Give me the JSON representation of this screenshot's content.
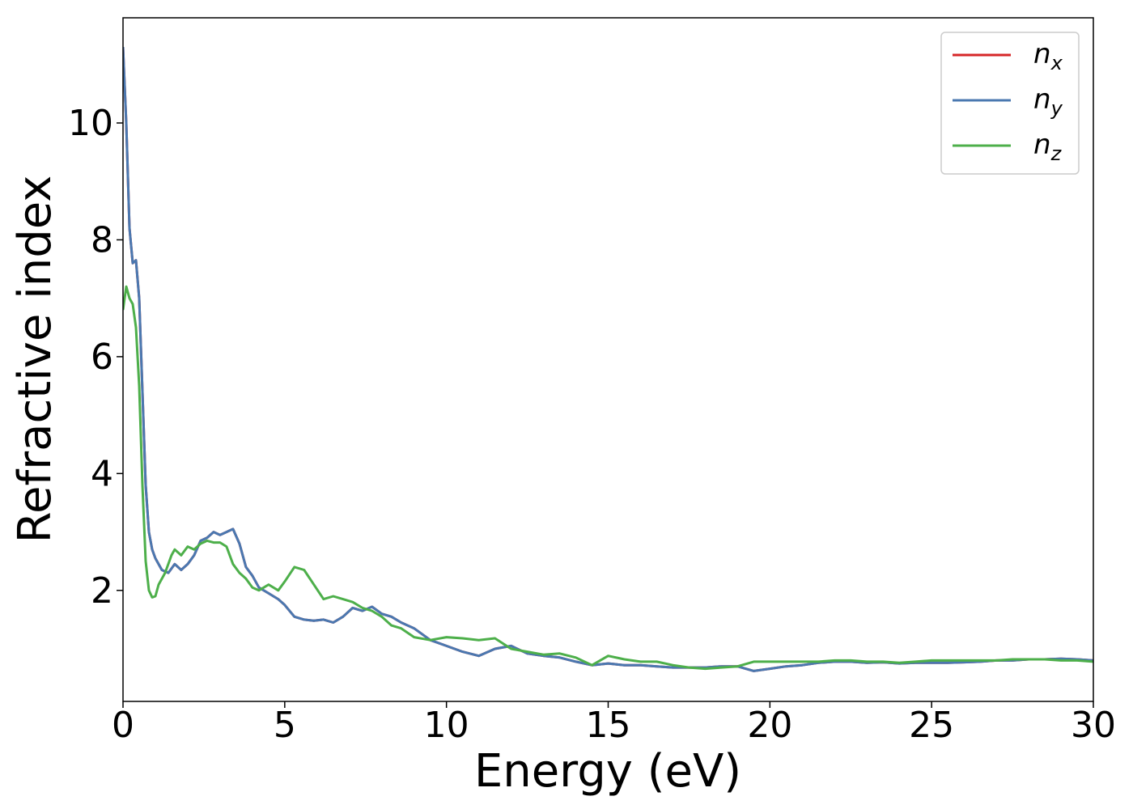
{
  "chart_data": {
    "type": "line",
    "title": "",
    "xlabel": "Energy (eV)",
    "ylabel": "Refractive index",
    "xlim": [
      0,
      30
    ],
    "ylim": [
      0.1,
      11.8
    ],
    "xticks": [
      0,
      5,
      10,
      15,
      20,
      25,
      30
    ],
    "yticks": [
      2,
      4,
      6,
      8,
      10
    ],
    "grid": false,
    "legend_position": "top-right",
    "series": [
      {
        "name": "n_x",
        "legend_main": "n",
        "legend_sub": "x",
        "color": "#d62728",
        "x": [
          0,
          0.1,
          0.2,
          0.3,
          0.4,
          0.5,
          0.6,
          0.7,
          0.8,
          0.9,
          1.0,
          1.2,
          1.4,
          1.6,
          1.8,
          2.0,
          2.2,
          2.4,
          2.6,
          2.8,
          3.0,
          3.2,
          3.4,
          3.6,
          3.8,
          4.0,
          4.2,
          4.5,
          4.8,
          5.0,
          5.3,
          5.6,
          5.9,
          6.2,
          6.5,
          6.8,
          7.1,
          7.4,
          7.7,
          8.0,
          8.3,
          8.6,
          9.0,
          9.5,
          10.0,
          10.5,
          11.0,
          11.5,
          12.0,
          12.5,
          13.0,
          13.5,
          14.0,
          14.5,
          15.0,
          15.5,
          16.0,
          16.5,
          17.0,
          17.5,
          18.0,
          18.5,
          19.0,
          19.5,
          20.0,
          20.5,
          21.0,
          21.5,
          22.0,
          22.5,
          23.0,
          23.5,
          24.0,
          24.5,
          25.0,
          25.5,
          26.0,
          26.5,
          27.0,
          27.5,
          28.0,
          28.5,
          29.0,
          29.5,
          30.0
        ],
        "y": [
          11.3,
          10.0,
          8.2,
          7.6,
          7.65,
          7.0,
          5.4,
          3.8,
          3.0,
          2.7,
          2.55,
          2.35,
          2.3,
          2.45,
          2.35,
          2.45,
          2.6,
          2.85,
          2.9,
          3.0,
          2.95,
          3.0,
          3.05,
          2.8,
          2.4,
          2.25,
          2.05,
          1.95,
          1.85,
          1.75,
          1.55,
          1.5,
          1.48,
          1.5,
          1.45,
          1.55,
          1.7,
          1.65,
          1.72,
          1.6,
          1.55,
          1.45,
          1.35,
          1.15,
          1.05,
          0.95,
          0.88,
          1.0,
          1.05,
          0.92,
          0.88,
          0.85,
          0.78,
          0.72,
          0.75,
          0.72,
          0.72,
          0.7,
          0.68,
          0.68,
          0.68,
          0.7,
          0.7,
          0.62,
          0.66,
          0.7,
          0.72,
          0.76,
          0.78,
          0.78,
          0.76,
          0.77,
          0.75,
          0.76,
          0.76,
          0.76,
          0.77,
          0.78,
          0.8,
          0.8,
          0.82,
          0.82,
          0.83,
          0.82,
          0.8
        ]
      },
      {
        "name": "n_y",
        "legend_main": "n",
        "legend_sub": "y",
        "color": "#4a78b0",
        "x": [
          0,
          0.1,
          0.2,
          0.3,
          0.4,
          0.5,
          0.6,
          0.7,
          0.8,
          0.9,
          1.0,
          1.2,
          1.4,
          1.6,
          1.8,
          2.0,
          2.2,
          2.4,
          2.6,
          2.8,
          3.0,
          3.2,
          3.4,
          3.6,
          3.8,
          4.0,
          4.2,
          4.5,
          4.8,
          5.0,
          5.3,
          5.6,
          5.9,
          6.2,
          6.5,
          6.8,
          7.1,
          7.4,
          7.7,
          8.0,
          8.3,
          8.6,
          9.0,
          9.5,
          10.0,
          10.5,
          11.0,
          11.5,
          12.0,
          12.5,
          13.0,
          13.5,
          14.0,
          14.5,
          15.0,
          15.5,
          16.0,
          16.5,
          17.0,
          17.5,
          18.0,
          18.5,
          19.0,
          19.5,
          20.0,
          20.5,
          21.0,
          21.5,
          22.0,
          22.5,
          23.0,
          23.5,
          24.0,
          24.5,
          25.0,
          25.5,
          26.0,
          26.5,
          27.0,
          27.5,
          28.0,
          28.5,
          29.0,
          29.5,
          30.0
        ],
        "y": [
          11.3,
          10.0,
          8.2,
          7.6,
          7.65,
          7.0,
          5.4,
          3.8,
          3.0,
          2.7,
          2.55,
          2.35,
          2.3,
          2.45,
          2.35,
          2.45,
          2.6,
          2.85,
          2.9,
          3.0,
          2.95,
          3.0,
          3.05,
          2.8,
          2.4,
          2.25,
          2.05,
          1.95,
          1.85,
          1.75,
          1.55,
          1.5,
          1.48,
          1.5,
          1.45,
          1.55,
          1.7,
          1.65,
          1.72,
          1.6,
          1.55,
          1.45,
          1.35,
          1.15,
          1.05,
          0.95,
          0.88,
          1.0,
          1.05,
          0.92,
          0.88,
          0.85,
          0.78,
          0.72,
          0.75,
          0.72,
          0.72,
          0.7,
          0.68,
          0.68,
          0.68,
          0.7,
          0.7,
          0.62,
          0.66,
          0.7,
          0.72,
          0.76,
          0.78,
          0.78,
          0.76,
          0.77,
          0.75,
          0.76,
          0.76,
          0.76,
          0.77,
          0.78,
          0.8,
          0.8,
          0.82,
          0.82,
          0.83,
          0.82,
          0.8
        ]
      },
      {
        "name": "n_z",
        "legend_main": "n",
        "legend_sub": "z",
        "color": "#4daf4a",
        "x": [
          0,
          0.1,
          0.2,
          0.3,
          0.4,
          0.5,
          0.6,
          0.7,
          0.8,
          0.9,
          1.0,
          1.1,
          1.3,
          1.5,
          1.6,
          1.8,
          2.0,
          2.2,
          2.4,
          2.6,
          2.8,
          3.0,
          3.2,
          3.4,
          3.6,
          3.8,
          4.0,
          4.2,
          4.5,
          4.8,
          5.0,
          5.3,
          5.6,
          5.9,
          6.2,
          6.5,
          6.8,
          7.1,
          7.4,
          7.7,
          8.0,
          8.3,
          8.6,
          9.0,
          9.5,
          10.0,
          10.5,
          11.0,
          11.5,
          12.0,
          12.5,
          13.0,
          13.5,
          14.0,
          14.5,
          15.0,
          15.5,
          16.0,
          16.5,
          17.0,
          17.5,
          18.0,
          18.5,
          19.0,
          19.5,
          20.0,
          20.5,
          21.0,
          21.5,
          22.0,
          22.5,
          23.0,
          23.5,
          24.0,
          24.5,
          25.0,
          25.5,
          26.0,
          26.5,
          27.0,
          27.5,
          28.0,
          28.5,
          29.0,
          29.5,
          30.0
        ],
        "y": [
          6.8,
          7.2,
          7.0,
          6.9,
          6.5,
          5.5,
          3.8,
          2.5,
          2.0,
          1.88,
          1.9,
          2.1,
          2.3,
          2.6,
          2.7,
          2.6,
          2.75,
          2.7,
          2.8,
          2.85,
          2.82,
          2.82,
          2.75,
          2.45,
          2.3,
          2.2,
          2.05,
          2.0,
          2.1,
          2.0,
          2.15,
          2.4,
          2.35,
          2.1,
          1.85,
          1.9,
          1.85,
          1.8,
          1.7,
          1.65,
          1.55,
          1.4,
          1.35,
          1.2,
          1.15,
          1.2,
          1.18,
          1.15,
          1.18,
          1.0,
          0.95,
          0.9,
          0.92,
          0.85,
          0.72,
          0.88,
          0.82,
          0.78,
          0.78,
          0.72,
          0.68,
          0.66,
          0.68,
          0.7,
          0.78,
          0.78,
          0.78,
          0.78,
          0.78,
          0.8,
          0.8,
          0.78,
          0.78,
          0.76,
          0.78,
          0.8,
          0.8,
          0.8,
          0.8,
          0.8,
          0.82,
          0.82,
          0.82,
          0.8,
          0.8,
          0.78
        ]
      }
    ]
  }
}
